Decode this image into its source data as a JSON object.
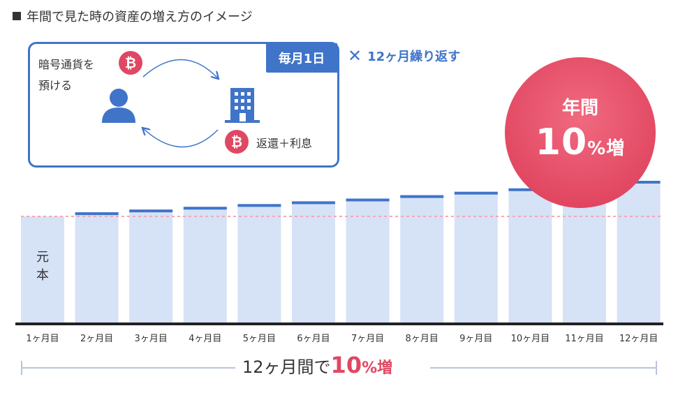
{
  "title": "年間で見た時の資産の増え方のイメージ",
  "diagram": {
    "monthly_tag": "毎月1日",
    "repeat_mark": "✕",
    "repeat_text": "12ヶ月繰り返す",
    "deposit_line1": "暗号通貨を",
    "deposit_line2": "預ける",
    "return_label": "返還＋利息",
    "coin_symbol": "₿"
  },
  "highlight": {
    "line1": "年間",
    "number": "10",
    "unit": "%増"
  },
  "principal_label": "元本",
  "summary": {
    "prefix": "12ヶ月間で",
    "number": "10",
    "unit": "%増"
  },
  "colors": {
    "bar": "#d6e2f6",
    "bar_top": "#3f74c9",
    "accent": "#3f74c9",
    "pink": "#e04763",
    "baseline": "#222222",
    "dashed": "#f3a9b5"
  },
  "chart_data": {
    "type": "bar",
    "categories": [
      "1ヶ月目",
      "2ヶ月目",
      "3ヶ月目",
      "4ヶ月目",
      "5ヶ月目",
      "6ヶ月目",
      "7ヶ月目",
      "8ヶ月目",
      "9ヶ月目",
      "10ヶ月目",
      "11ヶ月目",
      "12ヶ月目"
    ],
    "values": [
      100,
      100.8,
      101.6,
      102.4,
      103.2,
      104.0,
      104.8,
      105.8,
      106.8,
      107.8,
      108.8,
      110
    ],
    "reference_line": 100,
    "grid": false,
    "legend": "none"
  }
}
